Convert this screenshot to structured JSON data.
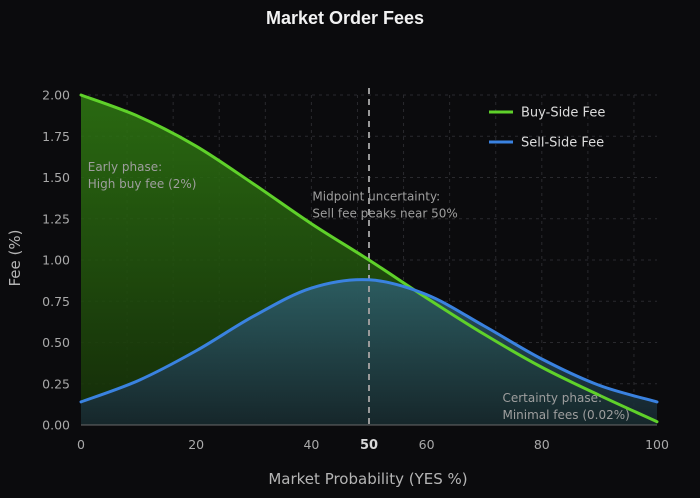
{
  "chart_data": {
    "type": "area",
    "title": "Market Order Fees",
    "xlabel": "Market Probability (YES %)",
    "ylabel": "Fee (%)",
    "xlim": [
      0,
      100
    ],
    "ylim": [
      0,
      2.0
    ],
    "x_ticks": [
      {
        "value": 0,
        "label": "0"
      },
      {
        "value": 20,
        "label": "20"
      },
      {
        "value": 40,
        "label": "40"
      },
      {
        "value": 50,
        "label": "50",
        "emphasis": true
      },
      {
        "value": 60,
        "label": "60"
      },
      {
        "value": 80,
        "label": "80"
      },
      {
        "value": 100,
        "label": "100"
      }
    ],
    "y_ticks": [
      {
        "value": 0,
        "label": "0.00"
      },
      {
        "value": 0.25,
        "label": "0.25"
      },
      {
        "value": 0.5,
        "label": "0.50"
      },
      {
        "value": 0.75,
        "label": "0.75"
      },
      {
        "value": 1.0,
        "label": "1.00"
      },
      {
        "value": 1.25,
        "label": "1.25"
      },
      {
        "value": 1.5,
        "label": "1.50"
      },
      {
        "value": 1.75,
        "label": "1.75"
      },
      {
        "value": 2.0,
        "label": "2.00"
      }
    ],
    "grid": true,
    "legend_position": "top-right",
    "series": [
      {
        "name": "Buy-Side Fee",
        "color": "#5fd12a",
        "x": [
          0,
          10,
          20,
          30,
          40,
          50,
          60,
          70,
          80,
          90,
          100
        ],
        "y": [
          2.0,
          1.87,
          1.69,
          1.46,
          1.22,
          1.0,
          0.77,
          0.55,
          0.35,
          0.18,
          0.02
        ]
      },
      {
        "name": "Sell-Side Fee",
        "color": "#3a82e0",
        "x": [
          0,
          10,
          20,
          30,
          40,
          50,
          60,
          70,
          80,
          90,
          100
        ],
        "y": [
          0.14,
          0.27,
          0.45,
          0.66,
          0.83,
          0.88,
          0.79,
          0.6,
          0.4,
          0.24,
          0.14
        ]
      }
    ],
    "reference_line": {
      "x": 50,
      "color": "#9a9a9a",
      "style": "dashed"
    },
    "annotations": [
      {
        "lines": [
          "Early phase:",
          "High buy fee (2%)"
        ],
        "x": 1,
        "y": 1.54
      },
      {
        "lines": [
          "Midpoint uncertainty:",
          "Sell fee peaks near 50%"
        ],
        "x": 40,
        "y": 1.36
      },
      {
        "lines": [
          "Certainty phase:",
          "Minimal fees (0.02%)"
        ],
        "x": 73,
        "y": 0.14
      }
    ]
  }
}
